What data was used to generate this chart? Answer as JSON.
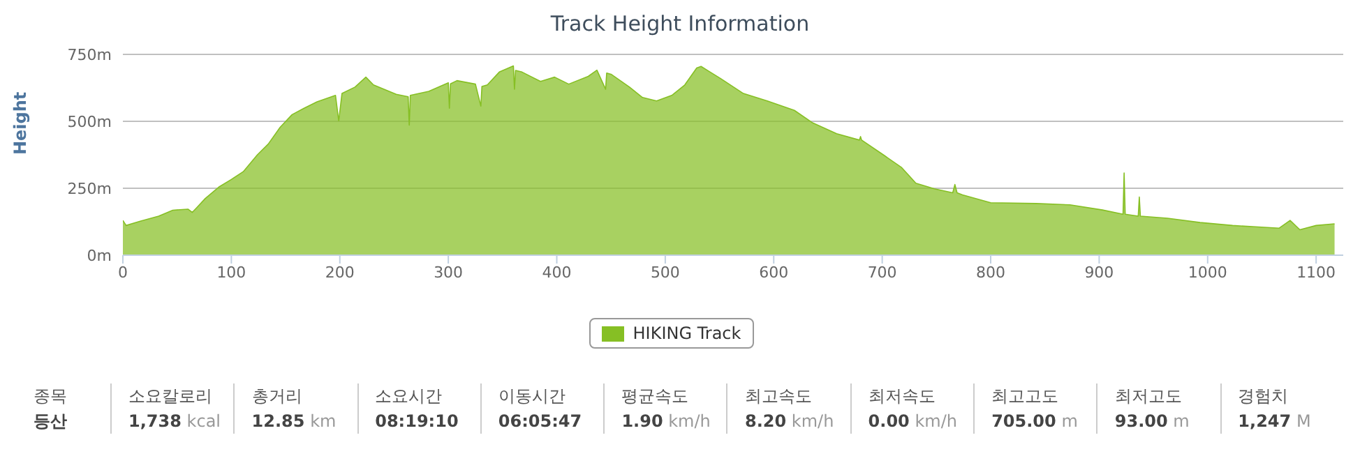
{
  "chart_data": {
    "type": "area",
    "title": "Track Height Information",
    "ylabel": "Height",
    "x": [
      0,
      3,
      16,
      33,
      46,
      60,
      64,
      68,
      76,
      89,
      100,
      111,
      124,
      134,
      145,
      156,
      167,
      179,
      196,
      199,
      202,
      214,
      224,
      231,
      252,
      263,
      264,
      265,
      282,
      300,
      301,
      302,
      308,
      325,
      330,
      331,
      336,
      347,
      360,
      361,
      362,
      368,
      385,
      398,
      411,
      429,
      437,
      445,
      446,
      450,
      467,
      479,
      492,
      506,
      518,
      529,
      533,
      551,
      572,
      594,
      619,
      636,
      658,
      679,
      680,
      681,
      701,
      718,
      731,
      748,
      765,
      767,
      769,
      774,
      800,
      842,
      873,
      903,
      922,
      923,
      924,
      936,
      937,
      938,
      963,
      993,
      1023,
      1044,
      1066,
      1076,
      1085,
      1100,
      1117
    ],
    "series": [
      {
        "name": "HIKING Track",
        "color": "#86bf24",
        "values": [
          130,
          111,
          127,
          146,
          168,
          172,
          160,
          177,
          212,
          256,
          283,
          312,
          375,
          415,
          478,
          525,
          549,
          573,
          597,
          502,
          604,
          628,
          665,
          636,
          601,
          592,
          486,
          597,
          612,
          644,
          549,
          640,
          652,
          639,
          557,
          630,
          636,
          684,
          707,
          620,
          690,
          684,
          649,
          665,
          639,
          668,
          691,
          620,
          680,
          676,
          628,
          589,
          576,
          597,
          636,
          699,
          705,
          660,
          604,
          576,
          541,
          494,
          454,
          430,
          443,
          430,
          375,
          327,
          269,
          248,
          233,
          264,
          233,
          225,
          196,
          193,
          188,
          169,
          153,
          307,
          153,
          146,
          217,
          146,
          138,
          122,
          111,
          106,
          101,
          130,
          95,
          111,
          117
        ]
      }
    ],
    "xlim": [
      0,
      1125
    ],
    "xticks": [
      0,
      100,
      200,
      300,
      400,
      500,
      600,
      700,
      800,
      900,
      1000,
      1100
    ],
    "ylim": [
      0,
      750
    ],
    "yticks": [
      {
        "value": 0,
        "label": "0m"
      },
      {
        "value": 250,
        "label": "250m"
      },
      {
        "value": 500,
        "label": "500m"
      },
      {
        "value": 750,
        "label": "750m"
      }
    ],
    "grid": "y",
    "legend": "bottom",
    "annotations": [
      "종목",
      "등산",
      "소요칼로리",
      "1,738 kcal",
      "총거리",
      "12.85 km",
      "소요시간",
      "08:19:10",
      "이동시간",
      "06:05:47",
      "평균속도",
      "1.90 km/h",
      "최고속도",
      "8.20 km/h",
      "최저속도",
      "0.00 km/h",
      "최고고도",
      "705.00 m",
      "최저고도",
      "93.00 m",
      "경험치",
      "1,247 M"
    ]
  }
}
